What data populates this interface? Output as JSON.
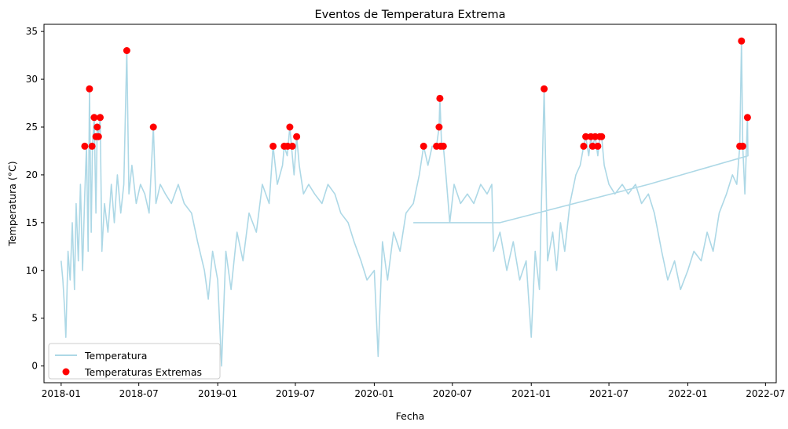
{
  "chart_data": {
    "type": "line",
    "title": "Eventos de Temperatura Extrema",
    "xlabel": "Fecha",
    "ylabel": "Temperatura (°C)",
    "xlim": [
      "2017-11-22",
      "2022-07-26"
    ],
    "ylim": [
      -1.75,
      35.75
    ],
    "x_ticks": [
      "2018-01",
      "2018-07",
      "2019-01",
      "2019-07",
      "2020-01",
      "2020-07",
      "2021-01",
      "2021-07",
      "2022-01",
      "2022-07"
    ],
    "y_ticks": [
      0,
      5,
      10,
      15,
      20,
      25,
      30,
      35
    ],
    "grid": false,
    "legend_position": "lower-left",
    "colors": {
      "line": "#add8e6",
      "extreme": "#ff0000"
    },
    "series": [
      {
        "name": "Temperatura",
        "kind": "line",
        "points": [
          [
            "2018-01-01",
            11
          ],
          [
            "2018-01-05",
            9
          ],
          [
            "2018-01-09",
            6
          ],
          [
            "2018-01-12",
            3
          ],
          [
            "2018-01-17",
            12
          ],
          [
            "2018-01-22",
            9
          ],
          [
            "2018-01-27",
            15
          ],
          [
            "2018-02-01",
            8
          ],
          [
            "2018-02-05",
            17
          ],
          [
            "2018-02-10",
            11
          ],
          [
            "2018-02-15",
            19
          ],
          [
            "2018-02-20",
            10
          ],
          [
            "2018-02-25",
            18
          ],
          [
            "2018-03-01",
            23
          ],
          [
            "2018-03-05",
            12
          ],
          [
            "2018-03-08",
            29
          ],
          [
            "2018-03-12",
            14
          ],
          [
            "2018-03-15",
            23
          ],
          [
            "2018-03-19",
            26
          ],
          [
            "2018-03-23",
            16
          ],
          [
            "2018-03-26",
            25
          ],
          [
            "2018-03-29",
            24
          ],
          [
            "2018-04-02",
            26
          ],
          [
            "2018-04-06",
            12
          ],
          [
            "2018-04-12",
            17
          ],
          [
            "2018-04-20",
            14
          ],
          [
            "2018-04-28",
            19
          ],
          [
            "2018-05-05",
            15
          ],
          [
            "2018-05-12",
            20
          ],
          [
            "2018-05-20",
            16
          ],
          [
            "2018-05-27",
            19
          ],
          [
            "2018-06-03",
            33
          ],
          [
            "2018-06-08",
            18
          ],
          [
            "2018-06-15",
            21
          ],
          [
            "2018-06-25",
            17
          ],
          [
            "2018-07-05",
            19
          ],
          [
            "2018-07-15",
            18
          ],
          [
            "2018-07-25",
            16
          ],
          [
            "2018-08-04",
            25
          ],
          [
            "2018-08-10",
            17
          ],
          [
            "2018-08-20",
            19
          ],
          [
            "2018-09-01",
            18
          ],
          [
            "2018-09-15",
            17
          ],
          [
            "2018-10-01",
            19
          ],
          [
            "2018-10-15",
            17
          ],
          [
            "2018-11-01",
            16
          ],
          [
            "2018-11-15",
            13
          ],
          [
            "2018-12-01",
            10
          ],
          [
            "2018-12-10",
            7
          ],
          [
            "2018-12-20",
            12
          ],
          [
            "2019-01-01",
            9
          ],
          [
            "2019-01-10",
            0
          ],
          [
            "2019-01-20",
            12
          ],
          [
            "2019-02-01",
            8
          ],
          [
            "2019-02-15",
            14
          ],
          [
            "2019-03-01",
            11
          ],
          [
            "2019-03-15",
            16
          ],
          [
            "2019-04-01",
            14
          ],
          [
            "2019-04-15",
            19
          ],
          [
            "2019-05-01",
            17
          ],
          [
            "2019-05-10",
            23
          ],
          [
            "2019-05-20",
            19
          ],
          [
            "2019-06-01",
            21
          ],
          [
            "2019-06-05",
            23
          ],
          [
            "2019-06-12",
            22
          ],
          [
            "2019-06-18",
            25
          ],
          [
            "2019-06-22",
            23
          ],
          [
            "2019-06-28",
            20
          ],
          [
            "2019-07-04",
            24
          ],
          [
            "2019-07-10",
            21
          ],
          [
            "2019-07-20",
            18
          ],
          [
            "2019-08-01",
            19
          ],
          [
            "2019-08-15",
            18
          ],
          [
            "2019-09-01",
            17
          ],
          [
            "2019-09-15",
            19
          ],
          [
            "2019-10-01",
            18
          ],
          [
            "2019-10-15",
            16
          ],
          [
            "2019-11-01",
            15
          ],
          [
            "2019-11-15",
            13
          ],
          [
            "2019-12-01",
            11
          ],
          [
            "2019-12-15",
            9
          ],
          [
            "2020-01-01",
            10
          ],
          [
            "2020-01-10",
            1
          ],
          [
            "2020-01-20",
            13
          ],
          [
            "2020-02-01",
            9
          ],
          [
            "2020-02-15",
            14
          ],
          [
            "2020-03-01",
            12
          ],
          [
            "2020-03-15",
            16
          ],
          [
            "2020-04-01",
            17
          ],
          [
            "2020-04-15",
            20
          ],
          [
            "2020-04-25",
            23
          ],
          [
            "2020-05-05",
            21
          ],
          [
            "2020-05-15",
            23
          ],
          [
            "2020-05-25",
            23
          ],
          [
            "2020-05-31",
            25
          ],
          [
            "2020-06-02",
            28
          ],
          [
            "2020-06-06",
            23
          ],
          [
            "2020-06-10",
            23
          ],
          [
            "2020-06-16",
            20
          ],
          [
            "2020-06-25",
            15
          ],
          [
            "2020-07-05",
            19
          ],
          [
            "2020-07-20",
            17
          ],
          [
            "2020-08-05",
            18
          ],
          [
            "2020-08-20",
            17
          ],
          [
            "2020-09-05",
            19
          ],
          [
            "2020-09-20",
            18
          ],
          [
            "2020-10-01",
            19
          ],
          [
            "2020-10-05",
            12
          ],
          [
            "2020-10-20",
            14
          ],
          [
            "2020-11-05",
            10
          ],
          [
            "2020-11-20",
            13
          ],
          [
            "2020-12-05",
            9
          ],
          [
            "2020-12-20",
            11
          ],
          [
            "2021-01-01",
            3
          ],
          [
            "2021-01-10",
            12
          ],
          [
            "2021-01-20",
            8
          ],
          [
            "2021-01-31",
            29
          ],
          [
            "2021-02-08",
            11
          ],
          [
            "2021-02-20",
            14
          ],
          [
            "2021-03-01",
            10
          ],
          [
            "2021-03-10",
            15
          ],
          [
            "2021-03-20",
            12
          ],
          [
            "2021-04-01",
            17
          ],
          [
            "2021-04-15",
            20
          ],
          [
            "2021-04-25",
            21
          ],
          [
            "2021-05-03",
            23
          ],
          [
            "2021-05-08",
            24
          ],
          [
            "2021-05-15",
            22
          ],
          [
            "2021-05-20",
            24
          ],
          [
            "2021-05-24",
            23
          ],
          [
            "2021-05-30",
            24
          ],
          [
            "2021-06-05",
            22
          ],
          [
            "2021-06-10",
            24
          ],
          [
            "2021-06-14",
            24
          ],
          [
            "2021-06-20",
            21
          ],
          [
            "2021-07-01",
            19
          ],
          [
            "2021-07-15",
            18
          ],
          [
            "2021-08-01",
            19
          ],
          [
            "2021-08-15",
            18
          ],
          [
            "2021-09-01",
            19
          ],
          [
            "2021-09-15",
            17
          ],
          [
            "2021-10-01",
            18
          ],
          [
            "2021-10-15",
            16
          ],
          [
            "2021-11-01",
            12
          ],
          [
            "2021-11-15",
            9
          ],
          [
            "2021-12-01",
            11
          ],
          [
            "2021-12-15",
            8
          ],
          [
            "2022-01-01",
            10
          ],
          [
            "2022-01-15",
            12
          ],
          [
            "2022-02-01",
            11
          ],
          [
            "2022-02-15",
            14
          ],
          [
            "2022-03-01",
            12
          ],
          [
            "2022-03-15",
            16
          ],
          [
            "2022-04-01",
            18
          ],
          [
            "2022-04-15",
            20
          ],
          [
            "2022-04-25",
            19
          ],
          [
            "2022-05-02",
            23
          ],
          [
            "2022-05-06",
            34
          ],
          [
            "2022-05-09",
            23
          ],
          [
            "2022-05-14",
            18
          ],
          [
            "2022-05-20",
            26
          ],
          [
            "2022-05-21",
            22
          ],
          [
            "2021-10-01",
            19
          ],
          [
            "2020-10-20",
            15
          ],
          [
            "2020-06-10",
            15
          ],
          [
            "2020-04-01",
            15
          ]
        ]
      },
      {
        "name": "Temperaturas Extremas",
        "kind": "scatter",
        "points": [
          [
            "2018-02-25",
            23
          ],
          [
            "2018-03-08",
            29
          ],
          [
            "2018-03-14",
            23
          ],
          [
            "2018-03-19",
            26
          ],
          [
            "2018-03-23",
            24
          ],
          [
            "2018-03-26",
            25
          ],
          [
            "2018-03-29",
            24
          ],
          [
            "2018-04-02",
            26
          ],
          [
            "2018-06-03",
            33
          ],
          [
            "2018-08-04",
            25
          ],
          [
            "2019-05-10",
            23
          ],
          [
            "2019-06-05",
            23
          ],
          [
            "2019-06-13",
            23
          ],
          [
            "2019-06-18",
            25
          ],
          [
            "2019-06-24",
            23
          ],
          [
            "2019-07-04",
            24
          ],
          [
            "2020-04-25",
            23
          ],
          [
            "2020-05-25",
            23
          ],
          [
            "2020-05-31",
            25
          ],
          [
            "2020-06-02",
            28
          ],
          [
            "2020-06-04",
            23
          ],
          [
            "2020-06-10",
            23
          ],
          [
            "2021-01-31",
            29
          ],
          [
            "2021-05-03",
            23
          ],
          [
            "2021-05-08",
            24
          ],
          [
            "2021-05-20",
            24
          ],
          [
            "2021-05-24",
            23
          ],
          [
            "2021-05-30",
            24
          ],
          [
            "2021-06-05",
            23
          ],
          [
            "2021-06-10",
            24
          ],
          [
            "2021-06-14",
            24
          ],
          [
            "2022-05-02",
            23
          ],
          [
            "2022-05-06",
            34
          ],
          [
            "2022-05-09",
            23
          ],
          [
            "2022-05-20",
            26
          ]
        ]
      }
    ]
  }
}
